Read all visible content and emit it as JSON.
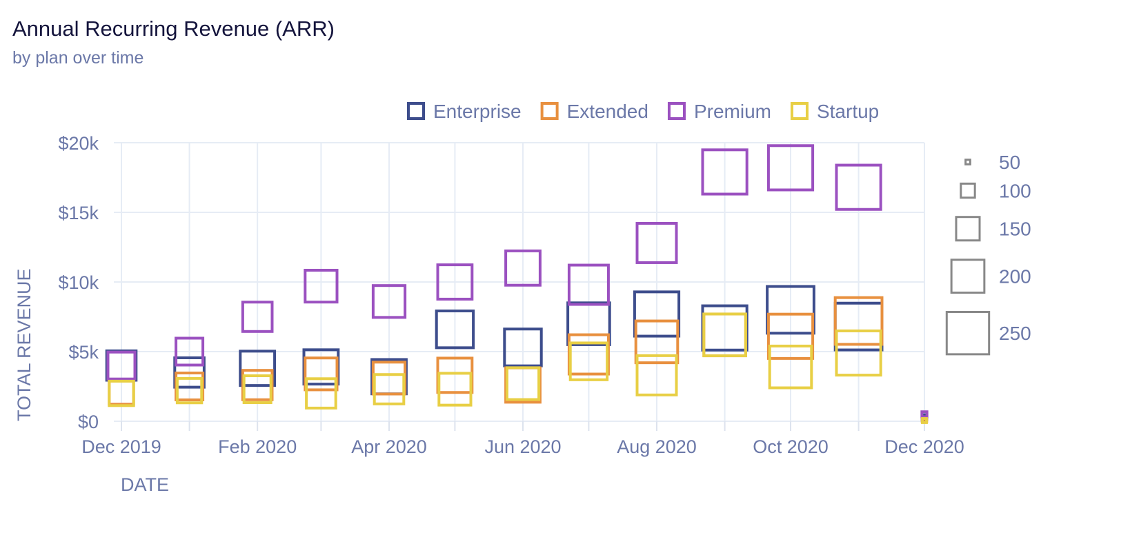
{
  "title": "Annual Recurring Revenue (ARR)",
  "subtitle": "by plan over time",
  "chart_data": {
    "type": "scatter",
    "marker": "square-open",
    "title": "Annual Recurring Revenue (ARR)",
    "subtitle": "by plan over time",
    "xlabel": "DATE",
    "ylabel": "TOTAL REVENUE",
    "ylim": [
      0,
      20000
    ],
    "yticks": [
      {
        "value": 0,
        "label": "$0"
      },
      {
        "value": 5000,
        "label": "$5k"
      },
      {
        "value": 10000,
        "label": "$10k"
      },
      {
        "value": 15000,
        "label": "$15k"
      },
      {
        "value": 20000,
        "label": "$20k"
      }
    ],
    "xlim": [
      "2019-12-01",
      "2020-12-01"
    ],
    "xticks": [
      {
        "value": "2019-12-01",
        "label": "Dec 2019"
      },
      {
        "value": "2020-02-01",
        "label": "Feb 2020"
      },
      {
        "value": "2020-04-01",
        "label": "Apr 2020"
      },
      {
        "value": "2020-06-01",
        "label": "Jun 2020"
      },
      {
        "value": "2020-08-01",
        "label": "Aug 2020"
      },
      {
        "value": "2020-10-01",
        "label": "Oct 2020"
      },
      {
        "value": "2020-12-01",
        "label": "Dec 2020"
      }
    ],
    "grid": true,
    "legend_position": "top",
    "size_legend_position": "right",
    "size_legend": [
      50,
      100,
      150,
      200,
      250
    ],
    "series": [
      {
        "name": "Enterprise",
        "color": "#3d4d8c",
        "points": [
          {
            "x": "2019-12-01",
            "y": 4000,
            "size": 55
          },
          {
            "x": "2020-01-01",
            "y": 3500,
            "size": 55
          },
          {
            "x": "2020-02-01",
            "y": 3800,
            "size": 65
          },
          {
            "x": "2020-03-01",
            "y": 3900,
            "size": 65
          },
          {
            "x": "2020-04-01",
            "y": 3200,
            "size": 65
          },
          {
            "x": "2020-05-01",
            "y": 6600,
            "size": 70
          },
          {
            "x": "2020-06-01",
            "y": 5300,
            "size": 70
          },
          {
            "x": "2020-07-01",
            "y": 7000,
            "size": 80
          },
          {
            "x": "2020-08-01",
            "y": 7700,
            "size": 85
          },
          {
            "x": "2020-09-01",
            "y": 6700,
            "size": 85
          },
          {
            "x": "2020-10-01",
            "y": 8000,
            "size": 90
          },
          {
            "x": "2020-11-01",
            "y": 6800,
            "size": 90
          },
          {
            "x": "2020-12-01",
            "y": 300,
            "size": 5
          }
        ]
      },
      {
        "name": "Extended",
        "color": "#e8903f",
        "points": [
          {
            "x": "2019-12-01",
            "y": 2100,
            "size": 45
          },
          {
            "x": "2020-01-01",
            "y": 2500,
            "size": 50
          },
          {
            "x": "2020-02-01",
            "y": 2600,
            "size": 55
          },
          {
            "x": "2020-03-01",
            "y": 3400,
            "size": 60
          },
          {
            "x": "2020-04-01",
            "y": 3100,
            "size": 60
          },
          {
            "x": "2020-05-01",
            "y": 3300,
            "size": 65
          },
          {
            "x": "2020-06-01",
            "y": 2600,
            "size": 65
          },
          {
            "x": "2020-07-01",
            "y": 4800,
            "size": 75
          },
          {
            "x": "2020-08-01",
            "y": 5700,
            "size": 80
          },
          {
            "x": "2020-09-01",
            "y": 6200,
            "size": 80
          },
          {
            "x": "2020-10-01",
            "y": 6100,
            "size": 85
          },
          {
            "x": "2020-11-01",
            "y": 7200,
            "size": 90
          },
          {
            "x": "2020-12-01",
            "y": 150,
            "size": 5
          }
        ]
      },
      {
        "name": "Premium",
        "color": "#9b51c0",
        "points": [
          {
            "x": "2019-12-01",
            "y": 4000,
            "size": 50
          },
          {
            "x": "2020-01-01",
            "y": 5000,
            "size": 50
          },
          {
            "x": "2020-02-01",
            "y": 7500,
            "size": 55
          },
          {
            "x": "2020-03-01",
            "y": 9700,
            "size": 60
          },
          {
            "x": "2020-04-01",
            "y": 8600,
            "size": 60
          },
          {
            "x": "2020-05-01",
            "y": 10000,
            "size": 65
          },
          {
            "x": "2020-06-01",
            "y": 11000,
            "size": 65
          },
          {
            "x": "2020-07-01",
            "y": 9800,
            "size": 75
          },
          {
            "x": "2020-08-01",
            "y": 12800,
            "size": 75
          },
          {
            "x": "2020-09-01",
            "y": 17900,
            "size": 85
          },
          {
            "x": "2020-10-01",
            "y": 18200,
            "size": 85
          },
          {
            "x": "2020-11-01",
            "y": 16800,
            "size": 85
          },
          {
            "x": "2020-12-01",
            "y": 500,
            "size": 6
          }
        ]
      },
      {
        "name": "Startup",
        "color": "#e8cf45",
        "points": [
          {
            "x": "2019-12-01",
            "y": 2000,
            "size": 45
          },
          {
            "x": "2020-01-01",
            "y": 2200,
            "size": 45
          },
          {
            "x": "2020-02-01",
            "y": 2300,
            "size": 50
          },
          {
            "x": "2020-03-01",
            "y": 2000,
            "size": 55
          },
          {
            "x": "2020-04-01",
            "y": 2300,
            "size": 55
          },
          {
            "x": "2020-05-01",
            "y": 2300,
            "size": 60
          },
          {
            "x": "2020-06-01",
            "y": 2700,
            "size": 60
          },
          {
            "x": "2020-07-01",
            "y": 4300,
            "size": 70
          },
          {
            "x": "2020-08-01",
            "y": 3300,
            "size": 75
          },
          {
            "x": "2020-09-01",
            "y": 6200,
            "size": 80
          },
          {
            "x": "2020-10-01",
            "y": 3900,
            "size": 80
          },
          {
            "x": "2020-11-01",
            "y": 4900,
            "size": 85
          },
          {
            "x": "2020-12-01",
            "y": 50,
            "size": 4
          }
        ]
      }
    ]
  }
}
